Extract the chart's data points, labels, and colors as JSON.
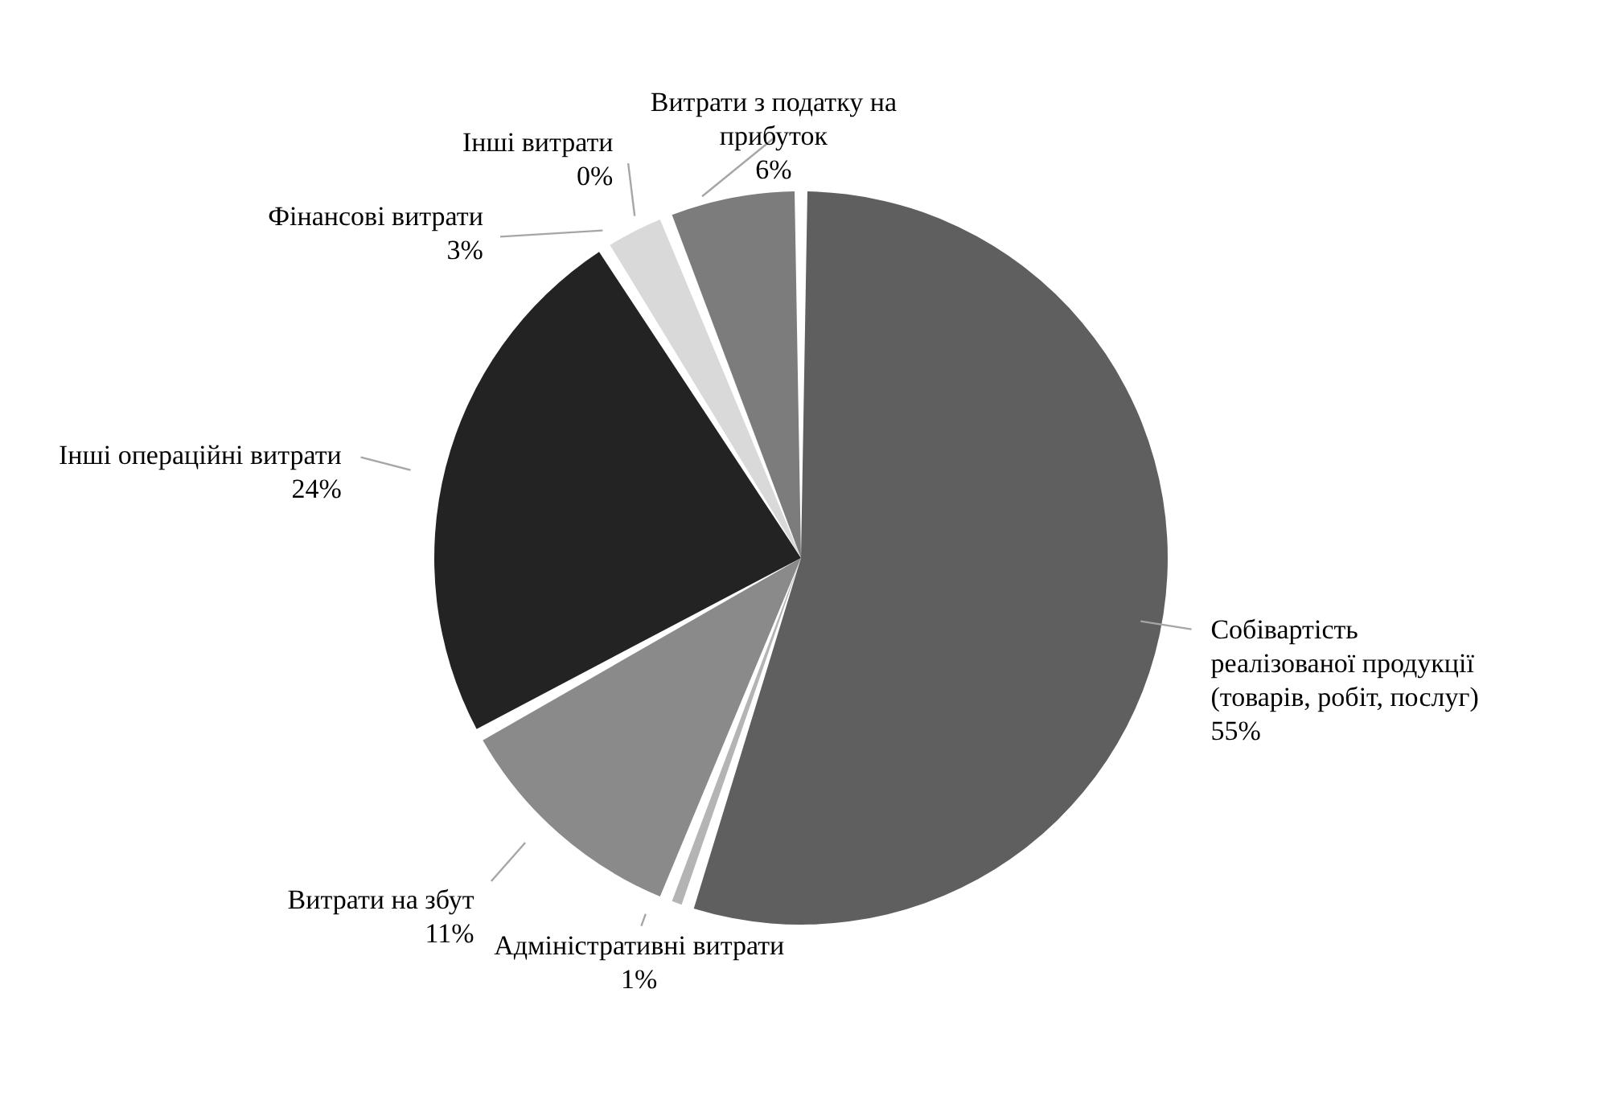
{
  "chart_data": {
    "type": "pie",
    "categories": [
      "Собівартість реалізованої продукції (товарів, робіт, послуг)",
      "Адміністративні витрати",
      "Витрати на збут",
      "Інші операційні витрати",
      "Фінансові витрати",
      "Інші витрати",
      "Витрати з податку на прибуток"
    ],
    "values": [
      55,
      1,
      11,
      24,
      3,
      0,
      6
    ],
    "value_labels": [
      "55%",
      "1%",
      "11%",
      "24%",
      "3%",
      "0%",
      "6%"
    ],
    "colors": [
      "#5f5f5f",
      "#b4b4b4",
      "#8a8a8a",
      "#232323",
      "#d9d9d9",
      "#a6a6a6",
      "#7c7c7c"
    ]
  }
}
